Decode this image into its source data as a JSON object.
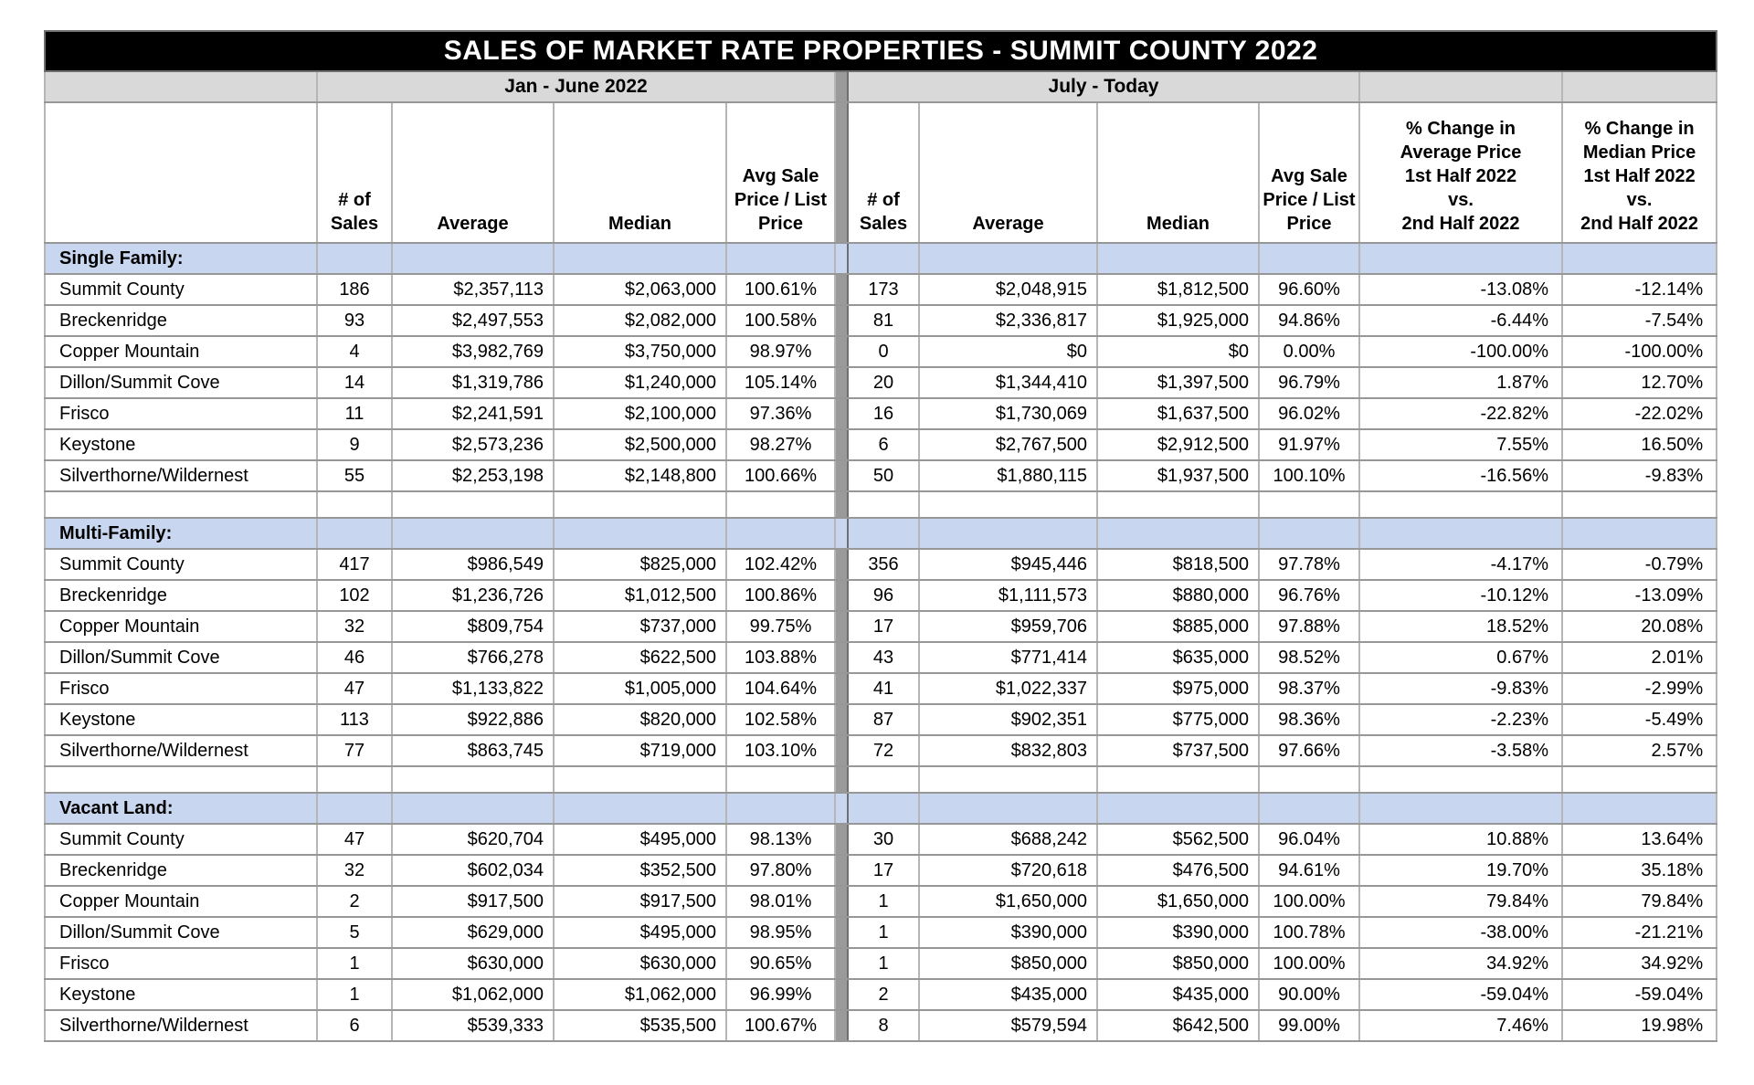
{
  "title": "SALES OF MARKET RATE PROPERTIES - SUMMIT COUNTY 2022",
  "period_headers": {
    "first": "Jan - June 2022",
    "second": "July - Today"
  },
  "column_headers": {
    "num_sales": "# of\nSales",
    "average": "Average",
    "median": "Median",
    "avg_list": "Avg Sale\nPrice / List\nPrice",
    "pct_change_avg": "% Change in\nAverage Price\n1st Half 2022\nvs.\n2nd Half 2022",
    "pct_change_med": "% Change in\nMedian Price\n1st Half 2022\nvs.\n2nd Half 2022"
  },
  "colors": {
    "title_bg": "#000000",
    "title_text": "#ffffff",
    "section_band_blue": "#c9d6f0",
    "period_row_gray": "#d9d9d9",
    "divider_gray": "#9a9a9a"
  },
  "sections": [
    {
      "label": "Single Family:",
      "rows": [
        {
          "area": "Summit County",
          "h1": [
            "186",
            "$2,357,113",
            "$2,063,000",
            "100.61%"
          ],
          "h2": [
            "173",
            "$2,048,915",
            "$1,812,500",
            "96.60%"
          ],
          "change": [
            "-13.08%",
            "-12.14%"
          ]
        },
        {
          "area": "Breckenridge",
          "h1": [
            "93",
            "$2,497,553",
            "$2,082,000",
            "100.58%"
          ],
          "h2": [
            "81",
            "$2,336,817",
            "$1,925,000",
            "94.86%"
          ],
          "change": [
            "-6.44%",
            "-7.54%"
          ]
        },
        {
          "area": "Copper Mountain",
          "h1": [
            "4",
            "$3,982,769",
            "$3,750,000",
            "98.97%"
          ],
          "h2": [
            "0",
            "$0",
            "$0",
            "0.00%"
          ],
          "change": [
            "-100.00%",
            "-100.00%"
          ]
        },
        {
          "area": "Dillon/Summit Cove",
          "h1": [
            "14",
            "$1,319,786",
            "$1,240,000",
            "105.14%"
          ],
          "h2": [
            "20",
            "$1,344,410",
            "$1,397,500",
            "96.79%"
          ],
          "change": [
            "1.87%",
            "12.70%"
          ]
        },
        {
          "area": "Frisco",
          "h1": [
            "11",
            "$2,241,591",
            "$2,100,000",
            "97.36%"
          ],
          "h2": [
            "16",
            "$1,730,069",
            "$1,637,500",
            "96.02%"
          ],
          "change": [
            "-22.82%",
            "-22.02%"
          ]
        },
        {
          "area": "Keystone",
          "h1": [
            "9",
            "$2,573,236",
            "$2,500,000",
            "98.27%"
          ],
          "h2": [
            "6",
            "$2,767,500",
            "$2,912,500",
            "91.97%"
          ],
          "change": [
            "7.55%",
            "16.50%"
          ]
        },
        {
          "area": "Silverthorne/Wildernest",
          "h1": [
            "55",
            "$2,253,198",
            "$2,148,800",
            "100.66%"
          ],
          "h2": [
            "50",
            "$1,880,115",
            "$1,937,500",
            "100.10%"
          ],
          "change": [
            "-16.56%",
            "-9.83%"
          ]
        }
      ]
    },
    {
      "label": "Multi-Family:",
      "rows": [
        {
          "area": "Summit County",
          "h1": [
            "417",
            "$986,549",
            "$825,000",
            "102.42%"
          ],
          "h2": [
            "356",
            "$945,446",
            "$818,500",
            "97.78%"
          ],
          "change": [
            "-4.17%",
            "-0.79%"
          ]
        },
        {
          "area": "Breckenridge",
          "h1": [
            "102",
            "$1,236,726",
            "$1,012,500",
            "100.86%"
          ],
          "h2": [
            "96",
            "$1,111,573",
            "$880,000",
            "96.76%"
          ],
          "change": [
            "-10.12%",
            "-13.09%"
          ]
        },
        {
          "area": "Copper Mountain",
          "h1": [
            "32",
            "$809,754",
            "$737,000",
            "99.75%"
          ],
          "h2": [
            "17",
            "$959,706",
            "$885,000",
            "97.88%"
          ],
          "change": [
            "18.52%",
            "20.08%"
          ]
        },
        {
          "area": "Dillon/Summit Cove",
          "h1": [
            "46",
            "$766,278",
            "$622,500",
            "103.88%"
          ],
          "h2": [
            "43",
            "$771,414",
            "$635,000",
            "98.52%"
          ],
          "change": [
            "0.67%",
            "2.01%"
          ]
        },
        {
          "area": "Frisco",
          "h1": [
            "47",
            "$1,133,822",
            "$1,005,000",
            "104.64%"
          ],
          "h2": [
            "41",
            "$1,022,337",
            "$975,000",
            "98.37%"
          ],
          "change": [
            "-9.83%",
            "-2.99%"
          ]
        },
        {
          "area": "Keystone",
          "h1": [
            "113",
            "$922,886",
            "$820,000",
            "102.58%"
          ],
          "h2": [
            "87",
            "$902,351",
            "$775,000",
            "98.36%"
          ],
          "change": [
            "-2.23%",
            "-5.49%"
          ]
        },
        {
          "area": "Silverthorne/Wildernest",
          "h1": [
            "77",
            "$863,745",
            "$719,000",
            "103.10%"
          ],
          "h2": [
            "72",
            "$832,803",
            "$737,500",
            "97.66%"
          ],
          "change": [
            "-3.58%",
            "2.57%"
          ]
        }
      ]
    },
    {
      "label": "Vacant Land:",
      "rows": [
        {
          "area": "Summit County",
          "h1": [
            "47",
            "$620,704",
            "$495,000",
            "98.13%"
          ],
          "h2": [
            "30",
            "$688,242",
            "$562,500",
            "96.04%"
          ],
          "change": [
            "10.88%",
            "13.64%"
          ]
        },
        {
          "area": "Breckenridge",
          "h1": [
            "32",
            "$602,034",
            "$352,500",
            "97.80%"
          ],
          "h2": [
            "17",
            "$720,618",
            "$476,500",
            "94.61%"
          ],
          "change": [
            "19.70%",
            "35.18%"
          ]
        },
        {
          "area": "Copper Mountain",
          "h1": [
            "2",
            "$917,500",
            "$917,500",
            "98.01%"
          ],
          "h2": [
            "1",
            "$1,650,000",
            "$1,650,000",
            "100.00%"
          ],
          "change": [
            "79.84%",
            "79.84%"
          ]
        },
        {
          "area": "Dillon/Summit Cove",
          "h1": [
            "5",
            "$629,000",
            "$495,000",
            "98.95%"
          ],
          "h2": [
            "1",
            "$390,000",
            "$390,000",
            "100.78%"
          ],
          "change": [
            "-38.00%",
            "-21.21%"
          ]
        },
        {
          "area": "Frisco",
          "h1": [
            "1",
            "$630,000",
            "$630,000",
            "90.65%"
          ],
          "h2": [
            "1",
            "$850,000",
            "$850,000",
            "100.00%"
          ],
          "change": [
            "34.92%",
            "34.92%"
          ]
        },
        {
          "area": "Keystone",
          "h1": [
            "1",
            "$1,062,000",
            "$1,062,000",
            "96.99%"
          ],
          "h2": [
            "2",
            "$435,000",
            "$435,000",
            "90.00%"
          ],
          "change": [
            "-59.04%",
            "-59.04%"
          ]
        },
        {
          "area": "Silverthorne/Wildernest",
          "h1": [
            "6",
            "$539,333",
            "$535,500",
            "100.67%"
          ],
          "h2": [
            "8",
            "$579,594",
            "$642,500",
            "99.00%"
          ],
          "change": [
            "7.46%",
            "19.98%"
          ]
        }
      ]
    }
  ]
}
